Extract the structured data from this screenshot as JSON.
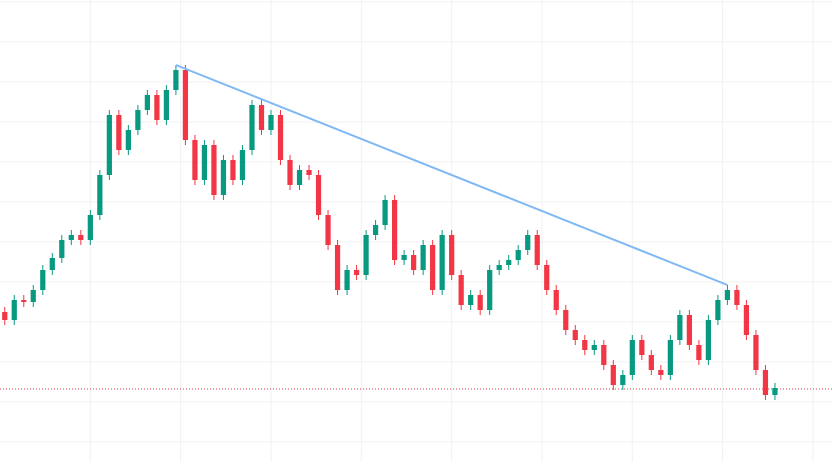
{
  "chart_data": {
    "type": "candlestick",
    "x": [
      0,
      1,
      2,
      3,
      4,
      5,
      6,
      7,
      8,
      9,
      10,
      11,
      12,
      13,
      14,
      15,
      16,
      17,
      18,
      19,
      20,
      21,
      22,
      23,
      24,
      25,
      26,
      27,
      28,
      29,
      30,
      31,
      32,
      33,
      34,
      35,
      36,
      37,
      38,
      39,
      40,
      41,
      42,
      43,
      44,
      45,
      46,
      47,
      48,
      49,
      50,
      51,
      52,
      53,
      54,
      55,
      56,
      57,
      58,
      59,
      60,
      61,
      62,
      63,
      64,
      65,
      66,
      67,
      68,
      69,
      70,
      71,
      72,
      73,
      74,
      75,
      76,
      77,
      78,
      79,
      80,
      81
    ],
    "open": [
      150,
      142,
      162,
      160,
      172,
      192,
      204,
      222,
      227,
      222,
      247,
      287,
      347,
      312,
      332,
      352,
      367,
      342,
      372,
      392,
      322,
      282,
      317,
      267,
      302,
      282,
      312,
      357,
      332,
      347,
      302,
      277,
      292,
      287,
      247,
      217,
      172,
      192,
      187,
      227,
      237,
      262,
      202,
      207,
      192,
      217,
      172,
      227,
      187,
      157,
      167,
      152,
      192,
      197,
      202,
      212,
      227,
      197,
      172,
      152,
      132,
      122,
      112,
      117,
      97,
      77,
      87,
      122,
      107,
      92,
      87,
      122,
      147,
      117,
      102,
      142,
      162,
      172,
      157,
      127,
      92,
      67
    ],
    "high": [
      155,
      167,
      167,
      177,
      197,
      209,
      227,
      232,
      232,
      252,
      292,
      352,
      352,
      337,
      357,
      372,
      372,
      377,
      397,
      397,
      327,
      322,
      322,
      307,
      307,
      317,
      362,
      362,
      352,
      352,
      307,
      297,
      297,
      292,
      252,
      222,
      197,
      197,
      232,
      242,
      267,
      267,
      212,
      212,
      222,
      222,
      232,
      232,
      192,
      172,
      172,
      197,
      202,
      207,
      217,
      232,
      232,
      202,
      177,
      157,
      137,
      127,
      122,
      122,
      102,
      92,
      127,
      127,
      112,
      97,
      127,
      152,
      152,
      122,
      147,
      167,
      177,
      177,
      162,
      132,
      97,
      79
    ],
    "low": [
      137,
      137,
      155,
      155,
      167,
      187,
      199,
      217,
      217,
      217,
      242,
      282,
      307,
      307,
      327,
      347,
      337,
      337,
      367,
      317,
      277,
      277,
      262,
      262,
      277,
      277,
      307,
      327,
      327,
      297,
      272,
      272,
      282,
      242,
      212,
      167,
      167,
      182,
      182,
      222,
      232,
      197,
      197,
      187,
      187,
      167,
      167,
      182,
      152,
      152,
      147,
      147,
      187,
      192,
      197,
      207,
      192,
      167,
      147,
      127,
      117,
      107,
      107,
      92,
      72,
      72,
      82,
      102,
      87,
      82,
      82,
      117,
      112,
      97,
      97,
      137,
      157,
      152,
      122,
      87,
      62,
      62
    ],
    "close": [
      142,
      162,
      160,
      172,
      192,
      204,
      222,
      227,
      222,
      247,
      287,
      347,
      312,
      332,
      352,
      367,
      342,
      372,
      392,
      322,
      282,
      317,
      267,
      302,
      282,
      312,
      357,
      332,
      347,
      302,
      277,
      292,
      287,
      247,
      217,
      172,
      192,
      187,
      227,
      237,
      262,
      202,
      207,
      192,
      217,
      172,
      227,
      187,
      157,
      167,
      152,
      192,
      197,
      202,
      212,
      227,
      197,
      172,
      152,
      132,
      122,
      112,
      117,
      97,
      77,
      87,
      122,
      107,
      92,
      87,
      122,
      147,
      117,
      102,
      142,
      162,
      172,
      157,
      127,
      92,
      67,
      74
    ],
    "up_color": "#089981",
    "down_color": "#f23645",
    "xlim": [
      -0.5,
      87
    ],
    "ylim": [
      0,
      462
    ],
    "xgrid": [
      9,
      18.5,
      28,
      37.5,
      47,
      56.5,
      66,
      75.5,
      85
    ],
    "ygrid": [
      460,
      420,
      380,
      340,
      300,
      260,
      220,
      180,
      140,
      100,
      60,
      20
    ],
    "trendline": {
      "x": [
        18,
        76
      ],
      "values": [
        397,
        177
      ],
      "color": "#7fb8f5"
    },
    "price_line": {
      "value": 73,
      "color": "#f23645"
    }
  }
}
